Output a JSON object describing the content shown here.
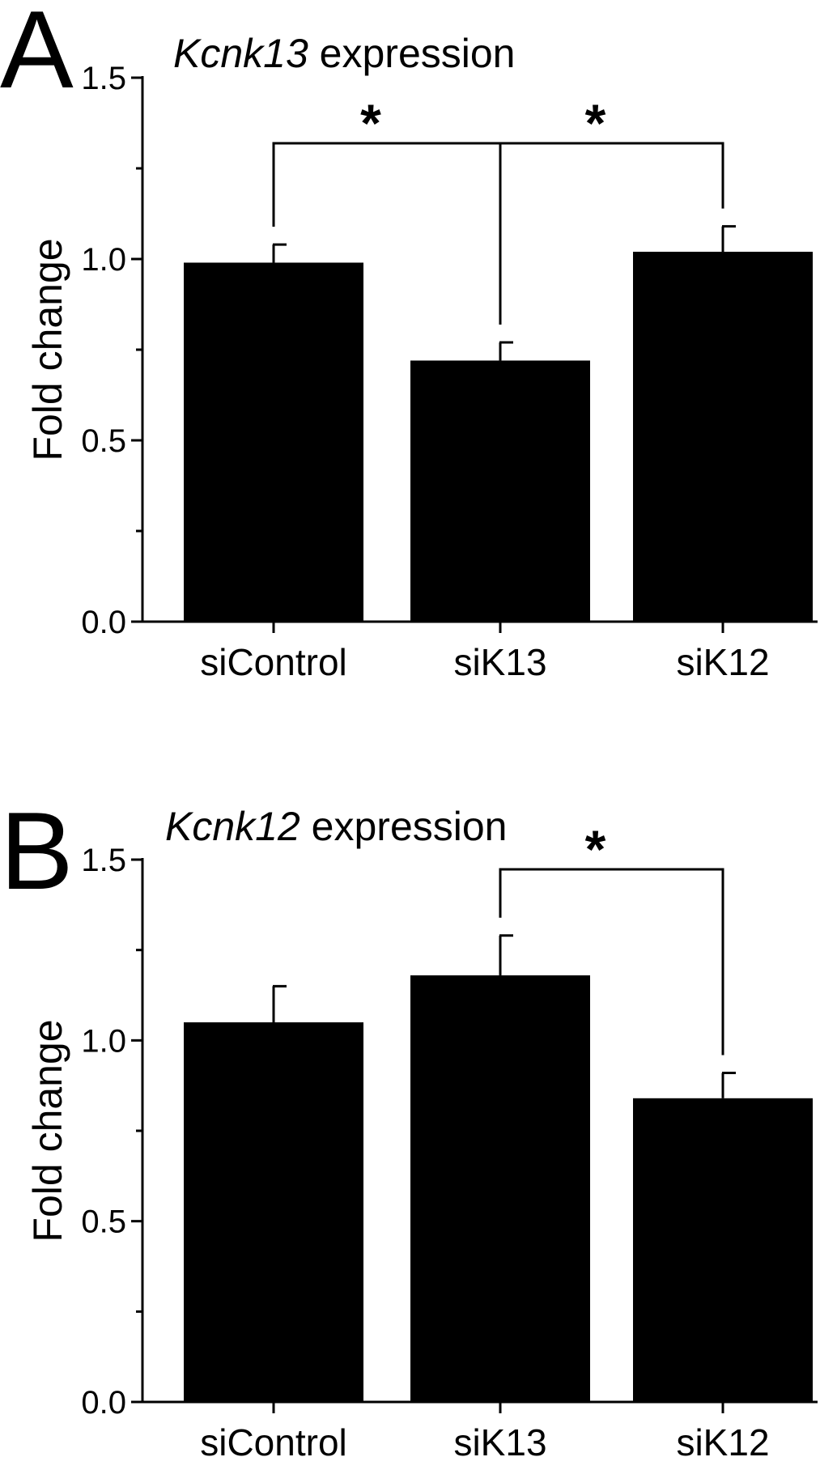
{
  "chart_data": [
    {
      "panel": "A",
      "type": "bar",
      "title_italic": "Kcnk13",
      "title_rest": " expression",
      "ylabel": "Fold change",
      "xlabel": "",
      "categories": [
        "siControl",
        "siK13",
        "siK12"
      ],
      "values": [
        0.99,
        0.72,
        1.02
      ],
      "errors": [
        0.05,
        0.05,
        0.07
      ],
      "ylim": [
        0,
        1.5
      ],
      "yticks": [
        "0.0",
        "0.5",
        "1.0",
        "1.5"
      ],
      "significance": [
        {
          "from": 0,
          "to": 1,
          "label": "*"
        },
        {
          "from": 1,
          "to": 2,
          "label": "*"
        }
      ],
      "grid": false,
      "bar_color": "#000000"
    },
    {
      "panel": "B",
      "type": "bar",
      "title_italic": "Kcnk12",
      "title_rest": " expression",
      "ylabel": "Fold change",
      "xlabel": "",
      "categories": [
        "siControl",
        "siK13",
        "siK12"
      ],
      "values": [
        1.05,
        1.18,
        0.84
      ],
      "errors": [
        0.1,
        0.11,
        0.07
      ],
      "ylim": [
        0,
        1.5
      ],
      "yticks": [
        "0.0",
        "0.5",
        "1.0",
        "1.5"
      ],
      "significance": [
        {
          "from": 1,
          "to": 2,
          "label": "*"
        }
      ],
      "grid": false,
      "bar_color": "#000000"
    }
  ]
}
